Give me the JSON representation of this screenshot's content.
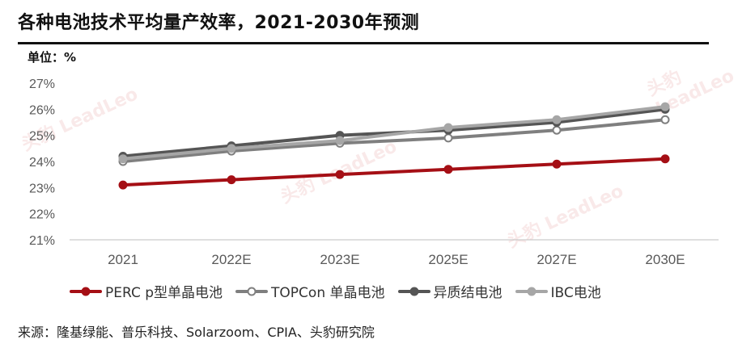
{
  "header": {
    "title": "各种电池技术平均量产效率，2021-2030年预测",
    "unit": "单位：%"
  },
  "source": {
    "text": "来源：隆基绿能、普乐科技、Solarzoom、CPIA、头豹研究院"
  },
  "watermark": {
    "text": "头豹",
    "subtext": "LeadLeo"
  },
  "chart_data": {
    "type": "line",
    "title": "各种电池技术平均量产效率，2021-2030年预测",
    "ylabel": "单位：%",
    "categories": [
      "2021",
      "2022E",
      "2023E",
      "2025E",
      "2027E",
      "2030E"
    ],
    "yticks": [
      "21%",
      "22%",
      "23%",
      "24%",
      "25%",
      "26%",
      "27%"
    ],
    "ylim": [
      21,
      27
    ],
    "grid": false,
    "legend_position": "bottom",
    "series": [
      {
        "name": "PERC p型单晶电池",
        "values": [
          23.1,
          23.3,
          23.5,
          23.7,
          23.9,
          24.1
        ],
        "color": "#a50f15",
        "marker_fill": "#a50f15"
      },
      {
        "name": "TOPCon 单晶电池",
        "values": [
          24.0,
          24.4,
          24.7,
          24.9,
          25.2,
          25.6
        ],
        "color": "#7f7f7f",
        "marker_fill": "#ffffff"
      },
      {
        "name": "异质结电池",
        "values": [
          24.2,
          24.6,
          25.0,
          25.2,
          25.5,
          26.0
        ],
        "color": "#555555",
        "marker_fill": "#555555"
      },
      {
        "name": "IBC电池",
        "values": [
          24.1,
          24.5,
          24.8,
          25.3,
          25.6,
          26.1
        ],
        "color": "#a6a6a6",
        "marker_fill": "#a6a6a6"
      }
    ]
  }
}
